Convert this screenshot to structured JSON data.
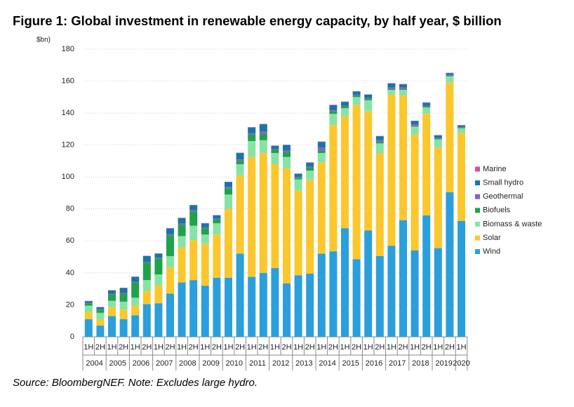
{
  "chart_data": {
    "type": "stacked_bar",
    "title": "Figure 1: Global investment in renewable energy capacity, by half year, $ billion",
    "y_unit": "$bn)",
    "source": "Source: BloombergNEF. Note: Excludes large hydro.",
    "categories": [
      "1H",
      "2H",
      "1H",
      "2H",
      "1H",
      "2H",
      "1H",
      "2H",
      "1H",
      "2H",
      "1H",
      "2H",
      "1H",
      "2H",
      "1H",
      "2H",
      "1H",
      "2H",
      "1H",
      "2H",
      "1H",
      "2H",
      "1H",
      "2H",
      "1H",
      "2H",
      "1H",
      "2H",
      "1H",
      "2H",
      "1H",
      "2H",
      "1H"
    ],
    "groups": [
      "2004",
      "2005",
      "2006",
      "2007",
      "2008",
      "2009",
      "2010",
      "2011",
      "2012",
      "2013",
      "2014",
      "2015",
      "2016",
      "2017",
      "2018",
      "2019",
      "2020"
    ],
    "series": [
      {
        "name": "Wind",
        "color": "#2a9fdb",
        "values": [
          11,
          7,
          13,
          11,
          13.5,
          20.5,
          21,
          27,
          34,
          35.5,
          32,
          37,
          37,
          52,
          37.5,
          40,
          43,
          33.5,
          38.5,
          39.5,
          52,
          53.5,
          68,
          48.5,
          66.5,
          50.5,
          57,
          73,
          54,
          76,
          55.5,
          90.5,
          72.5
        ]
      },
      {
        "name": "Solar",
        "color": "#fcc72c",
        "values": [
          4.5,
          4,
          5.5,
          6,
          6,
          8,
          11,
          16.5,
          22,
          25,
          26,
          27,
          43,
          49,
          75,
          75,
          65,
          72,
          53,
          58.5,
          57,
          79,
          70,
          96.5,
          74.5,
          64.5,
          94.5,
          78,
          72.5,
          63.5,
          63,
          68.5,
          55
        ]
      },
      {
        "name": "Biomass & waste",
        "color": "#86e3a6",
        "values": [
          4,
          4,
          4,
          5,
          5,
          7,
          7,
          7,
          7,
          9,
          6,
          7,
          9,
          7,
          10,
          8,
          7,
          7,
          7,
          6,
          6,
          7,
          5,
          5,
          7,
          6,
          3,
          3.5,
          5,
          4,
          5,
          4,
          3
        ]
      },
      {
        "name": "Biofuels",
        "color": "#1ea34b",
        "values": [
          1.5,
          2,
          4,
          5,
          9.5,
          11,
          10,
          13,
          7,
          9,
          4,
          2.5,
          4,
          2,
          4,
          4,
          2,
          3,
          1,
          2,
          1.5,
          1.5,
          1,
          1,
          1,
          1,
          0.5,
          0.5,
          0.5,
          0.5,
          0.5,
          0.5,
          0.5
        ]
      },
      {
        "name": "Geothermal",
        "color": "#8a5cc4",
        "values": [
          0.3,
          0.3,
          0.5,
          0.5,
          0.5,
          0.5,
          0.5,
          0.8,
          0.8,
          0.8,
          0.5,
          0.5,
          0.8,
          1,
          1,
          1.5,
          0.5,
          1,
          0.5,
          0.5,
          2,
          1,
          0.5,
          0.5,
          0.5,
          1,
          1,
          1,
          1,
          0.5,
          0.5,
          0.5,
          0.3
        ]
      },
      {
        "name": "Small hydro",
        "color": "#1676a8",
        "values": [
          1,
          1.2,
          2,
          3,
          3,
          3.5,
          2.5,
          3.5,
          3.5,
          3,
          2.5,
          2,
          3,
          4,
          3.5,
          4.5,
          2,
          3.5,
          2,
          2.5,
          3.5,
          3,
          2.5,
          2,
          2,
          2.5,
          2.5,
          2,
          2,
          2,
          1.5,
          1,
          1
        ]
      },
      {
        "name": "Marine",
        "color": "#d04fa8",
        "values": [
          0.2,
          0.2,
          0.2,
          0.2,
          0.2,
          0.2,
          0.2,
          0.2,
          0.2,
          0.2,
          0.2,
          0.2,
          0.2,
          0.2,
          0.2,
          0.2,
          0.2,
          0.2,
          0.2,
          0.2,
          0.2,
          0.2,
          0.2,
          0.2,
          0.2,
          0.2,
          0.2,
          0.2,
          0.2,
          0.2,
          0.2,
          0.2,
          0.2
        ]
      }
    ],
    "ylim": [
      0,
      180
    ],
    "yticks": [
      0,
      20,
      40,
      60,
      80,
      100,
      120,
      140,
      160,
      180
    ],
    "grid": true,
    "legend": "right"
  }
}
